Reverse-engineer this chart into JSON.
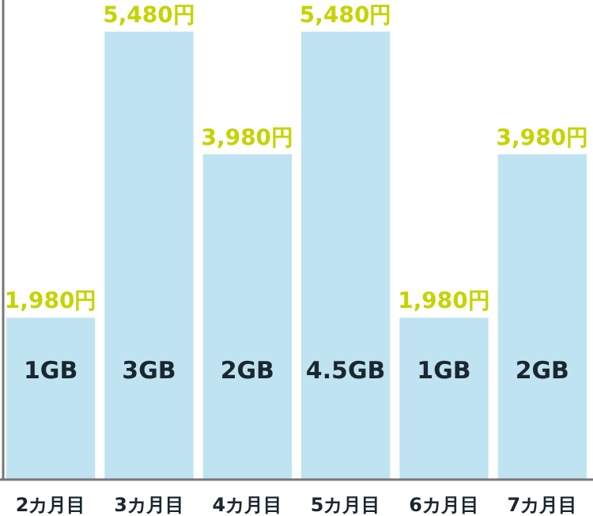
{
  "chart_data": {
    "type": "bar",
    "categories": [
      "2カ月目",
      "3カ月目",
      "4カ月目",
      "5カ月目",
      "6カ月目",
      "7カ月目"
    ],
    "values": [
      1980,
      5480,
      3980,
      5480,
      1980,
      3980
    ],
    "color": "#c0e3f1",
    "value_labels": [
      "1,980円",
      "5,480円",
      "3,980円",
      "5,480円",
      "1,980円",
      "3,980円"
    ],
    "annotations": [
      "1GB",
      "3GB",
      "2GB",
      "4.5GB",
      "1GB",
      "2GB"
    ]
  }
}
